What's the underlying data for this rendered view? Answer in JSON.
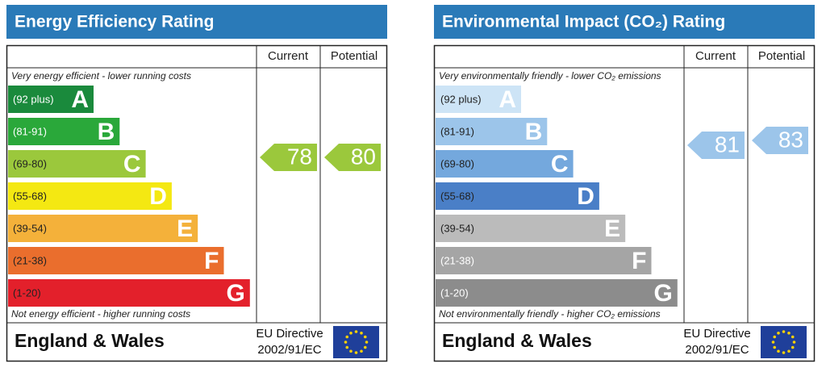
{
  "panels": [
    {
      "title": "Energy Efficiency Rating",
      "headers": [
        "Current",
        "Potential"
      ],
      "top_note": "Very energy efficient - lower running costs",
      "bottom_note": "Not energy efficient - higher running costs",
      "bands": [
        {
          "range": "(92 plus)",
          "letter": "A",
          "color": "#1a8a3c",
          "text_color": "#ffffff"
        },
        {
          "range": "(81-91)",
          "letter": "B",
          "color": "#2aa83a",
          "text_color": "#ffffff"
        },
        {
          "range": "(69-80)",
          "letter": "C",
          "color": "#9bc83c",
          "text_color": "#222222"
        },
        {
          "range": "(55-68)",
          "letter": "D",
          "color": "#f4e812",
          "text_color": "#222222"
        },
        {
          "range": "(39-54)",
          "letter": "E",
          "color": "#f4b13a",
          "text_color": "#222222"
        },
        {
          "range": "(21-38)",
          "letter": "F",
          "color": "#ea6e2d",
          "text_color": "#222222"
        },
        {
          "range": "(1-20)",
          "letter": "G",
          "color": "#e3202b",
          "text_color": "#222222"
        }
      ],
      "current": {
        "value": 78,
        "color": "#9bc83c"
      },
      "potential": {
        "value": 80,
        "color": "#9bc83c"
      },
      "region": "England & Wales",
      "directive": [
        "EU Directive",
        "2002/91/EC"
      ]
    },
    {
      "title": "Environmental Impact (CO₂) Rating",
      "headers": [
        "Current",
        "Potential"
      ],
      "top_note": "Very environmentally friendly - lower CO₂ emissions",
      "bottom_note": "Not environmentally friendly - higher CO₂ emissions",
      "bands": [
        {
          "range": "(92 plus)",
          "letter": "A",
          "color": "#cde4f6",
          "text_color": "#222222"
        },
        {
          "range": "(81-91)",
          "letter": "B",
          "color": "#9cc5ea",
          "text_color": "#222222"
        },
        {
          "range": "(69-80)",
          "letter": "C",
          "color": "#74a8dd",
          "text_color": "#222222"
        },
        {
          "range": "(55-68)",
          "letter": "D",
          "color": "#4a7fc7",
          "text_color": "#222222"
        },
        {
          "range": "(39-54)",
          "letter": "E",
          "color": "#bbbbbb",
          "text_color": "#222222"
        },
        {
          "range": "(21-38)",
          "letter": "F",
          "color": "#a5a5a5",
          "text_color": "#ffffff"
        },
        {
          "range": "(1-20)",
          "letter": "G",
          "color": "#8c8c8c",
          "text_color": "#ffffff"
        }
      ],
      "current": {
        "value": 81,
        "color": "#9cc5ea"
      },
      "potential": {
        "value": 83,
        "color": "#9cc5ea"
      },
      "region": "England & Wales",
      "directive": [
        "EU Directive",
        "2002/91/EC"
      ]
    }
  ]
}
